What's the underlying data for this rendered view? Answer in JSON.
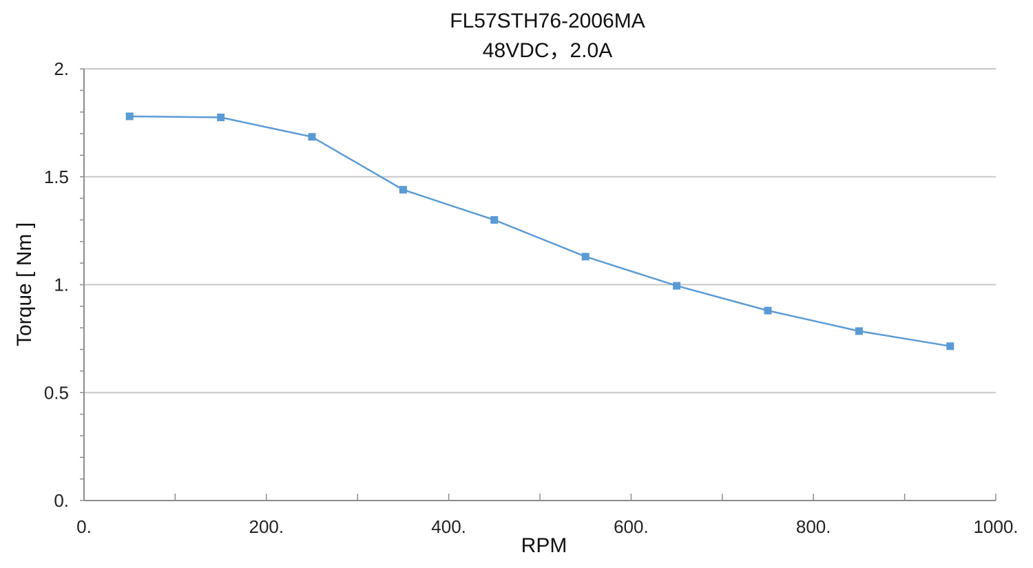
{
  "chart_data": {
    "type": "line",
    "title": "FL57STH76-2006MA",
    "subtitle": "48VDC，2.0A",
    "xlabel": "RPM",
    "ylabel": "Torque [ Nm ]",
    "xlim": [
      0,
      1000
    ],
    "ylim": [
      0,
      2
    ],
    "x_ticks": [
      0,
      200,
      400,
      600,
      800,
      1000
    ],
    "x_tick_labels": [
      "0.",
      "200.",
      "400.",
      "600.",
      "800.",
      "1000."
    ],
    "y_ticks": [
      0,
      0.5,
      1,
      1.5,
      2
    ],
    "y_tick_labels": [
      "0.",
      "0.5",
      "1.",
      "1.5",
      "2."
    ],
    "grid": true,
    "series": [
      {
        "color": "#5b9bd5",
        "marker": "square",
        "x": [
          50,
          150,
          250,
          350,
          450,
          550,
          650,
          750,
          850,
          950
        ],
        "y": [
          1.78,
          1.775,
          1.685,
          1.44,
          1.3,
          1.13,
          0.995,
          0.88,
          0.785,
          0.715
        ]
      }
    ]
  }
}
